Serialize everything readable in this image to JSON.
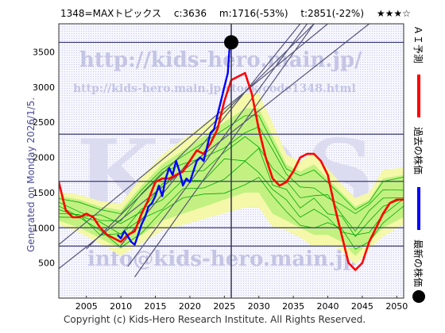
{
  "header": {
    "ticker": "1348=MAXトピックス",
    "c_value": "c:3636",
    "m_value": "m:1716(-53%)",
    "t_value": "t:2851(-22%)",
    "rating": "★★★☆"
  },
  "side_label": "Generated on Monday 2026/1/5.",
  "footer": "Copyright (c) Kids-Hero Research Institute. All Rights Reserved.",
  "watermarks": {
    "url_main": "http://kids-hero.main.jp/",
    "url_code": "http://kids-hero.main.jp/stock/code1348.html",
    "logo": "KIDS",
    "email": "info@kids-hero.main.jp"
  },
  "legend": [
    {
      "label": "ＡＩ予測",
      "color": "#ff0000",
      "type": "line"
    },
    {
      "label": "過去の株価",
      "color": "#0000ff",
      "type": "line"
    },
    {
      "label": "最新の株価",
      "color": "#000000",
      "type": "dot"
    }
  ],
  "colors": {
    "ai": "#ff0000",
    "past": "#0000ff",
    "bands": "#00aa00",
    "band_fill": "#b8f07a",
    "band_fill_outer": "#f4f8a8",
    "grid": "#6a6aa8",
    "trend": "#555577",
    "background": "#f1f1ff"
  },
  "chart_data": {
    "type": "line",
    "xlim": [
      2001,
      2051
    ],
    "ylim": [
      0,
      3900
    ],
    "x_ticks": [
      2005,
      2010,
      2015,
      2020,
      2025,
      2030,
      2035,
      2040,
      2045,
      2050
    ],
    "y_ticks": [
      500,
      1000,
      1500,
      2000,
      2500,
      3000,
      3500
    ],
    "h_lines": [
      3636,
      2330,
      1660,
      1000,
      740
    ],
    "v_line": 2026.0,
    "latest_point": {
      "x": 2026.0,
      "y": 3636
    },
    "trend_lines": [
      [
        [
          2001,
          420
        ],
        [
          2046,
          3900
        ]
      ],
      [
        [
          2001,
          760
        ],
        [
          2040,
          3900
        ]
      ],
      [
        [
          2005,
          700
        ],
        [
          2038,
          3900
        ]
      ],
      [
        [
          2010,
          750
        ],
        [
          2036,
          3900
        ]
      ],
      [
        [
          2011,
          450
        ],
        [
          2037,
          3900
        ]
      ],
      [
        [
          2012,
          300
        ],
        [
          2038,
          3900
        ]
      ]
    ],
    "series": [
      {
        "name": "過去の株価",
        "x": [
          2009.5,
          2010,
          2010.5,
          2011,
          2011.5,
          2012,
          2012.5,
          2013,
          2013.5,
          2014,
          2014.5,
          2015,
          2015.5,
          2016,
          2016.5,
          2017,
          2017.5,
          2018,
          2018.5,
          2019,
          2019.5,
          2020,
          2020.5,
          2021,
          2021.5,
          2022,
          2022.5,
          2023,
          2023.5,
          2024,
          2024.5,
          2025,
          2025.5,
          2025.8
        ],
        "y": [
          900,
          850,
          950,
          880,
          800,
          760,
          900,
          1050,
          1150,
          1300,
          1350,
          1450,
          1600,
          1450,
          1700,
          1850,
          1750,
          1950,
          1800,
          1600,
          1700,
          1650,
          1800,
          1950,
          2000,
          1950,
          2150,
          2350,
          2400,
          2600,
          2800,
          3000,
          3200,
          3636
        ]
      },
      {
        "name": "ＡＩ予測",
        "x": [
          2001,
          2002,
          2003,
          2004,
          2005,
          2006,
          2007,
          2008,
          2009,
          2010,
          2011,
          2012,
          2013,
          2014,
          2015,
          2016,
          2017,
          2018,
          2019,
          2020,
          2021,
          2022,
          2023,
          2024,
          2025,
          2026,
          2027,
          2028,
          2029,
          2030,
          2031,
          2032,
          2033,
          2034,
          2035,
          2036,
          2037,
          2038,
          2039,
          2040,
          2041,
          2042,
          2043,
          2044,
          2045,
          2046,
          2047,
          2048,
          2049,
          2050,
          2051
        ],
        "y": [
          1650,
          1250,
          1150,
          1150,
          1200,
          1150,
          1000,
          900,
          850,
          800,
          900,
          950,
          1200,
          1400,
          1650,
          1700,
          1700,
          1750,
          1800,
          1950,
          2100,
          2050,
          2200,
          2400,
          2800,
          3100,
          3150,
          3200,
          2900,
          2400,
          2000,
          1700,
          1600,
          1650,
          1800,
          2000,
          2050,
          2050,
          1950,
          1750,
          1300,
          900,
          500,
          400,
          500,
          800,
          1000,
          1200,
          1350,
          1400,
          1400
        ]
      },
      {
        "name": "band_upper",
        "x": [
          2001,
          2004,
          2007,
          2010,
          2013,
          2016,
          2019,
          2022,
          2025,
          2028,
          2030,
          2032,
          2034,
          2036,
          2038,
          2040,
          2042,
          2044,
          2046,
          2048,
          2051
        ],
        "y": [
          1450,
          1400,
          1300,
          1250,
          1600,
          1900,
          2100,
          2300,
          2500,
          2700,
          2700,
          2300,
          1900,
          1800,
          1900,
          1700,
          1500,
          1300,
          1400,
          1700,
          1750
        ]
      },
      {
        "name": "band_lower",
        "x": [
          2001,
          2004,
          2007,
          2010,
          2013,
          2016,
          2019,
          2022,
          2025,
          2028,
          2030,
          2032,
          2034,
          2036,
          2038,
          2040,
          2042,
          2044,
          2046,
          2048,
          2051
        ],
        "y": [
          1100,
          1000,
          850,
          700,
          900,
          1100,
          1200,
          1300,
          1400,
          1500,
          1500,
          1200,
          1100,
          1000,
          900,
          900,
          800,
          600,
          800,
          1000,
          1150
        ]
      }
    ]
  }
}
